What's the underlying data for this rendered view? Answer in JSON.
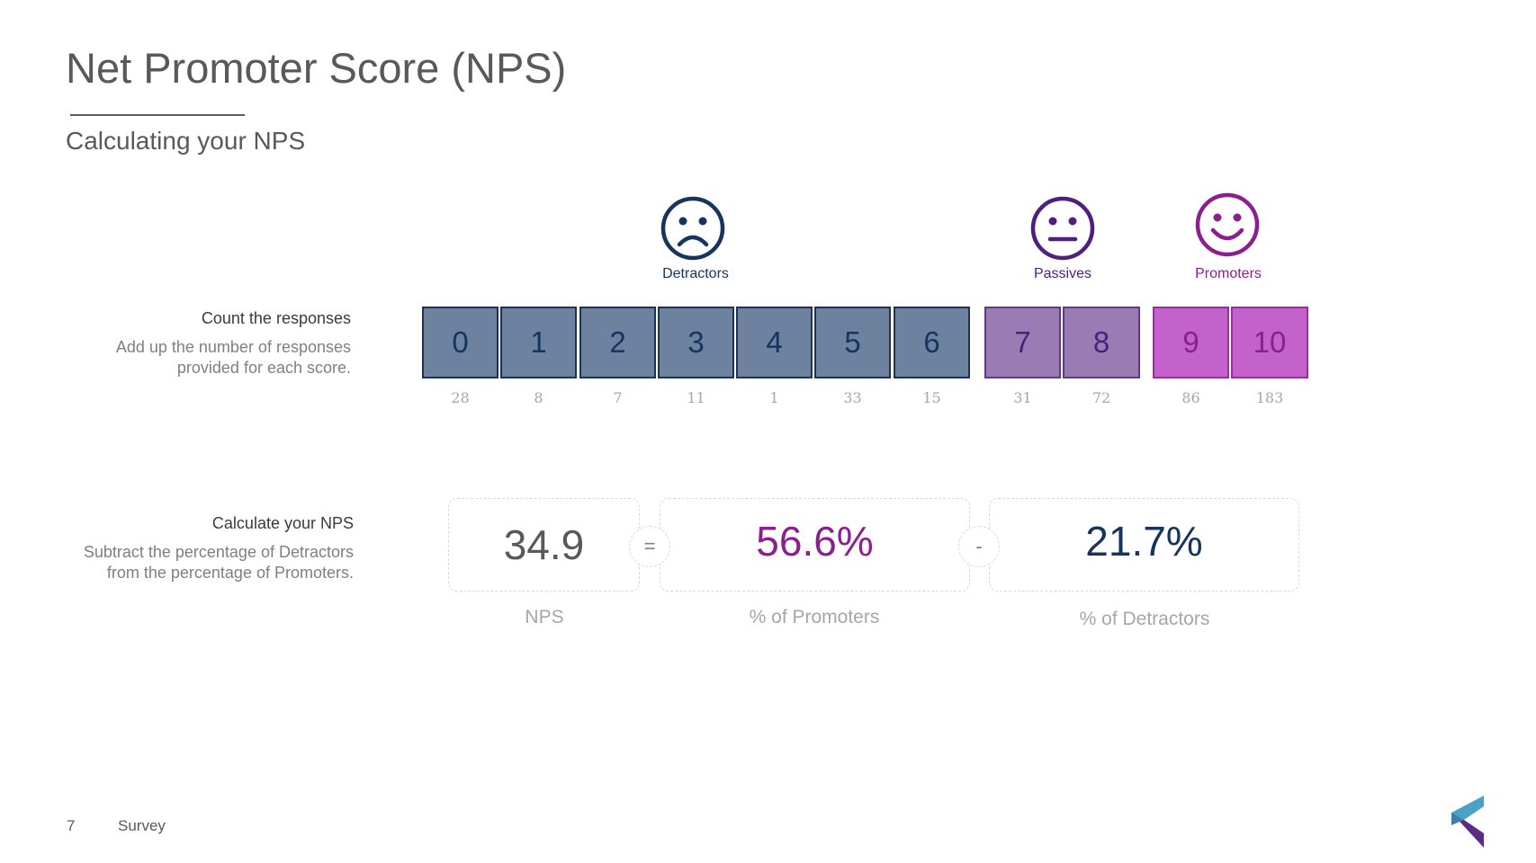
{
  "slide": {
    "title": "Net Promoter Score (NPS)",
    "subtitle": "Calculating your NPS",
    "page_number": "7",
    "footer_text": "Survey"
  },
  "colors": {
    "detractor": "#17345e",
    "passive": "#4e1f7e",
    "promoter": "#8c1f8e",
    "detractor_box": "#6c829f",
    "passive_box": "#9a7bb4",
    "promoter_box": "#c262ca"
  },
  "groups": {
    "detractors": {
      "label": "Detractors",
      "icon": "sad-face-icon"
    },
    "passives": {
      "label": "Passives",
      "icon": "neutral-face-icon"
    },
    "promoters": {
      "label": "Promoters",
      "icon": "happy-face-icon"
    }
  },
  "count_section": {
    "heading": "Count the responses",
    "description": "Add up the number of responses\nprovided for each score."
  },
  "scores": [
    {
      "score": "0",
      "count": "28",
      "group": "detractor"
    },
    {
      "score": "1",
      "count": "8",
      "group": "detractor"
    },
    {
      "score": "2",
      "count": "7",
      "group": "detractor"
    },
    {
      "score": "3",
      "count": "11",
      "group": "detractor"
    },
    {
      "score": "4",
      "count": "1",
      "group": "detractor"
    },
    {
      "score": "5",
      "count": "33",
      "group": "detractor"
    },
    {
      "score": "6",
      "count": "15",
      "group": "detractor"
    },
    {
      "score": "7",
      "count": "31",
      "group": "passive"
    },
    {
      "score": "8",
      "count": "72",
      "group": "passive"
    },
    {
      "score": "9",
      "count": "86",
      "group": "promoter"
    },
    {
      "score": "10",
      "count": "183",
      "group": "promoter"
    }
  ],
  "calc_section": {
    "heading": "Calculate your NPS",
    "description": "Subtract the percentage of Detractors\nfrom the percentage of Promoters."
  },
  "calculation": {
    "nps_value": "34.9",
    "nps_label": "NPS",
    "equals_symbol": "=",
    "promoters_value": "56.6%",
    "promoters_label": "% of Promoters",
    "minus_symbol": "-",
    "detractors_value": "21.7%",
    "detractors_label": "% of Detractors"
  },
  "logo": {
    "icon": "brand-logo-icon"
  }
}
